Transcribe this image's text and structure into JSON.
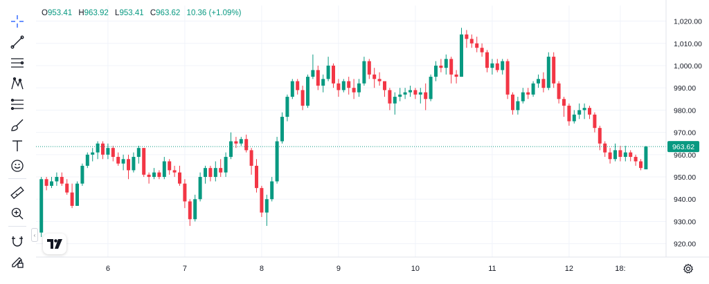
{
  "toolbar": {
    "tools": [
      "crosshair-icon",
      "trend-line-icon",
      "horizontal-lines-icon",
      "pattern-icon",
      "fib-icon",
      "brush-icon",
      "text-icon",
      "emoji-icon",
      "ruler-icon",
      "zoom-in-icon",
      "magnet-icon",
      "lock-edit-icon"
    ]
  },
  "legend": {
    "o_key": "O",
    "o_val": "953.41",
    "h_key": "H",
    "h_val": "963.92",
    "l_key": "L",
    "l_val": "953.41",
    "c_key": "C",
    "c_val": "963.62",
    "change": "10.36 (+1.09%)"
  },
  "colors": {
    "up": "#089981",
    "down": "#f23645",
    "grid": "#f0f3fa",
    "axis_text": "#131722"
  },
  "chart_data": {
    "type": "candlestick",
    "x_ticks": [
      {
        "label": "6",
        "index": 13
      },
      {
        "label": "7",
        "index": 28
      },
      {
        "label": "8",
        "index": 43
      },
      {
        "label": "9",
        "index": 58
      },
      {
        "label": "10",
        "index": 73
      },
      {
        "label": "11",
        "index": 88
      },
      {
        "label": "12",
        "index": 103
      },
      {
        "label": "18:",
        "index": 113
      }
    ],
    "y_ticks": [
      920,
      930,
      940,
      950,
      960,
      970,
      980,
      990,
      1000,
      1010,
      1020
    ],
    "y_tick_labels": [
      "920.00",
      "930.00",
      "940.00",
      "950.00",
      "960.00",
      "970.00",
      "980.00",
      "990.00",
      "1,000.00",
      "1,010.00",
      "1,020.00"
    ],
    "ylim": [
      914,
      1027
    ],
    "last_price": 963.62,
    "last_price_label": "963.62",
    "ohlc": [
      [
        925,
        950,
        923,
        949
      ],
      [
        949,
        950,
        944,
        946
      ],
      [
        946,
        950,
        945,
        948
      ],
      [
        948,
        952,
        946,
        950
      ],
      [
        950,
        952,
        946,
        947
      ],
      [
        947,
        949,
        942,
        943
      ],
      [
        943,
        947,
        936,
        937
      ],
      [
        937,
        948,
        937,
        947
      ],
      [
        947,
        956,
        946,
        955
      ],
      [
        955,
        961,
        954,
        960
      ],
      [
        960,
        963,
        957,
        961
      ],
      [
        961,
        966,
        958,
        965
      ],
      [
        965,
        966,
        958,
        960
      ],
      [
        960,
        965,
        958,
        963
      ],
      [
        963,
        964,
        957,
        959
      ],
      [
        959,
        961,
        955,
        956
      ],
      [
        956,
        960,
        953,
        958
      ],
      [
        958,
        960,
        949,
        953
      ],
      [
        953,
        961,
        952,
        959
      ],
      [
        959,
        964,
        956,
        963
      ],
      [
        963,
        963,
        950,
        951
      ],
      [
        951,
        952,
        947,
        950
      ],
      [
        950,
        954,
        949,
        952
      ],
      [
        952,
        953,
        949,
        950
      ],
      [
        950,
        959,
        949,
        957
      ],
      [
        957,
        958,
        951,
        953
      ],
      [
        953,
        955,
        950,
        952
      ],
      [
        952,
        955,
        946,
        947
      ],
      [
        947,
        949,
        936,
        939
      ],
      [
        939,
        940,
        928,
        931
      ],
      [
        931,
        942,
        930,
        940
      ],
      [
        940,
        952,
        939,
        950
      ],
      [
        950,
        955,
        947,
        954
      ],
      [
        954,
        955,
        948,
        950
      ],
      [
        950,
        957,
        948,
        954
      ],
      [
        954,
        958,
        950,
        952
      ],
      [
        952,
        961,
        950,
        959
      ],
      [
        959,
        970,
        958,
        966
      ],
      [
        966,
        968,
        963,
        965
      ],
      [
        965,
        968,
        964,
        967
      ],
      [
        967,
        969,
        961,
        962
      ],
      [
        962,
        963,
        951,
        955
      ],
      [
        955,
        958,
        943,
        945
      ],
      [
        945,
        946,
        932,
        934
      ],
      [
        934,
        942,
        928,
        940
      ],
      [
        940,
        950,
        939,
        948
      ],
      [
        948,
        968,
        947,
        966
      ],
      [
        966,
        979,
        965,
        977
      ],
      [
        977,
        987,
        975,
        986
      ],
      [
        986,
        994,
        985,
        993
      ],
      [
        993,
        994,
        987,
        989
      ],
      [
        989,
        991,
        980,
        982
      ],
      [
        982,
        996,
        981,
        995
      ],
      [
        995,
        1005,
        994,
        998
      ],
      [
        998,
        1000,
        989,
        991
      ],
      [
        991,
        996,
        988,
        994
      ],
      [
        994,
        1004,
        993,
        1000
      ],
      [
        1000,
        1001,
        990,
        992
      ],
      [
        992,
        994,
        986,
        989
      ],
      [
        989,
        994,
        988,
        993
      ],
      [
        993,
        995,
        987,
        990
      ],
      [
        990,
        994,
        985,
        988
      ],
      [
        988,
        994,
        986,
        992
      ],
      [
        992,
        1004,
        991,
        1002
      ],
      [
        1002,
        1003,
        994,
        996
      ],
      [
        996,
        999,
        990,
        994
      ],
      [
        994,
        997,
        991,
        993
      ],
      [
        993,
        993,
        986,
        989
      ],
      [
        989,
        990,
        980,
        983
      ],
      [
        983,
        988,
        978,
        986
      ],
      [
        986,
        990,
        984,
        987
      ],
      [
        987,
        990,
        985,
        988
      ],
      [
        988,
        991,
        986,
        989
      ],
      [
        989,
        990,
        985,
        987
      ],
      [
        987,
        990,
        983,
        988
      ],
      [
        988,
        992,
        980,
        985
      ],
      [
        985,
        996,
        984,
        995
      ],
      [
        995,
        1002,
        993,
        1000
      ],
      [
        1000,
        1003,
        997,
        999
      ],
      [
        999,
        1005,
        996,
        1003
      ],
      [
        1003,
        1004,
        992,
        996
      ],
      [
        996,
        998,
        992,
        995
      ],
      [
        995,
        1017,
        995,
        1014
      ],
      [
        1014,
        1016,
        1008,
        1012
      ],
      [
        1012,
        1014,
        1008,
        1010
      ],
      [
        1010,
        1013,
        1006,
        1008
      ],
      [
        1008,
        1010,
        1004,
        1006
      ],
      [
        1006,
        1007,
        997,
        999
      ],
      [
        999,
        1003,
        996,
        1001
      ],
      [
        1001,
        1003,
        997,
        998
      ],
      [
        998,
        1003,
        996,
        1002
      ],
      [
        1002,
        1003,
        985,
        987
      ],
      [
        987,
        988,
        978,
        980
      ],
      [
        980,
        986,
        978,
        984
      ],
      [
        984,
        990,
        983,
        988
      ],
      [
        988,
        990,
        985,
        987
      ],
      [
        987,
        993,
        986,
        992
      ],
      [
        992,
        996,
        990,
        994
      ],
      [
        994,
        997,
        988,
        990
      ],
      [
        990,
        1006,
        989,
        1004
      ],
      [
        1004,
        1006,
        990,
        992
      ],
      [
        992,
        993,
        983,
        985
      ],
      [
        985,
        986,
        977,
        982
      ],
      [
        982,
        983,
        973,
        975
      ],
      [
        975,
        980,
        974,
        978
      ],
      [
        978,
        983,
        976,
        980
      ],
      [
        980,
        983,
        976,
        981
      ],
      [
        981,
        982,
        976,
        978
      ],
      [
        978,
        979,
        970,
        972
      ],
      [
        972,
        973,
        962,
        965
      ],
      [
        965,
        966,
        959,
        961
      ],
      [
        961,
        963,
        956,
        958
      ],
      [
        958,
        965,
        957,
        962
      ],
      [
        962,
        964,
        957,
        959
      ],
      [
        959,
        964,
        957,
        961
      ],
      [
        961,
        962,
        957,
        959
      ],
      [
        959,
        960,
        955,
        957
      ],
      [
        957,
        958,
        953,
        954
      ],
      [
        953.41,
        963.92,
        953.41,
        963.62
      ]
    ]
  }
}
